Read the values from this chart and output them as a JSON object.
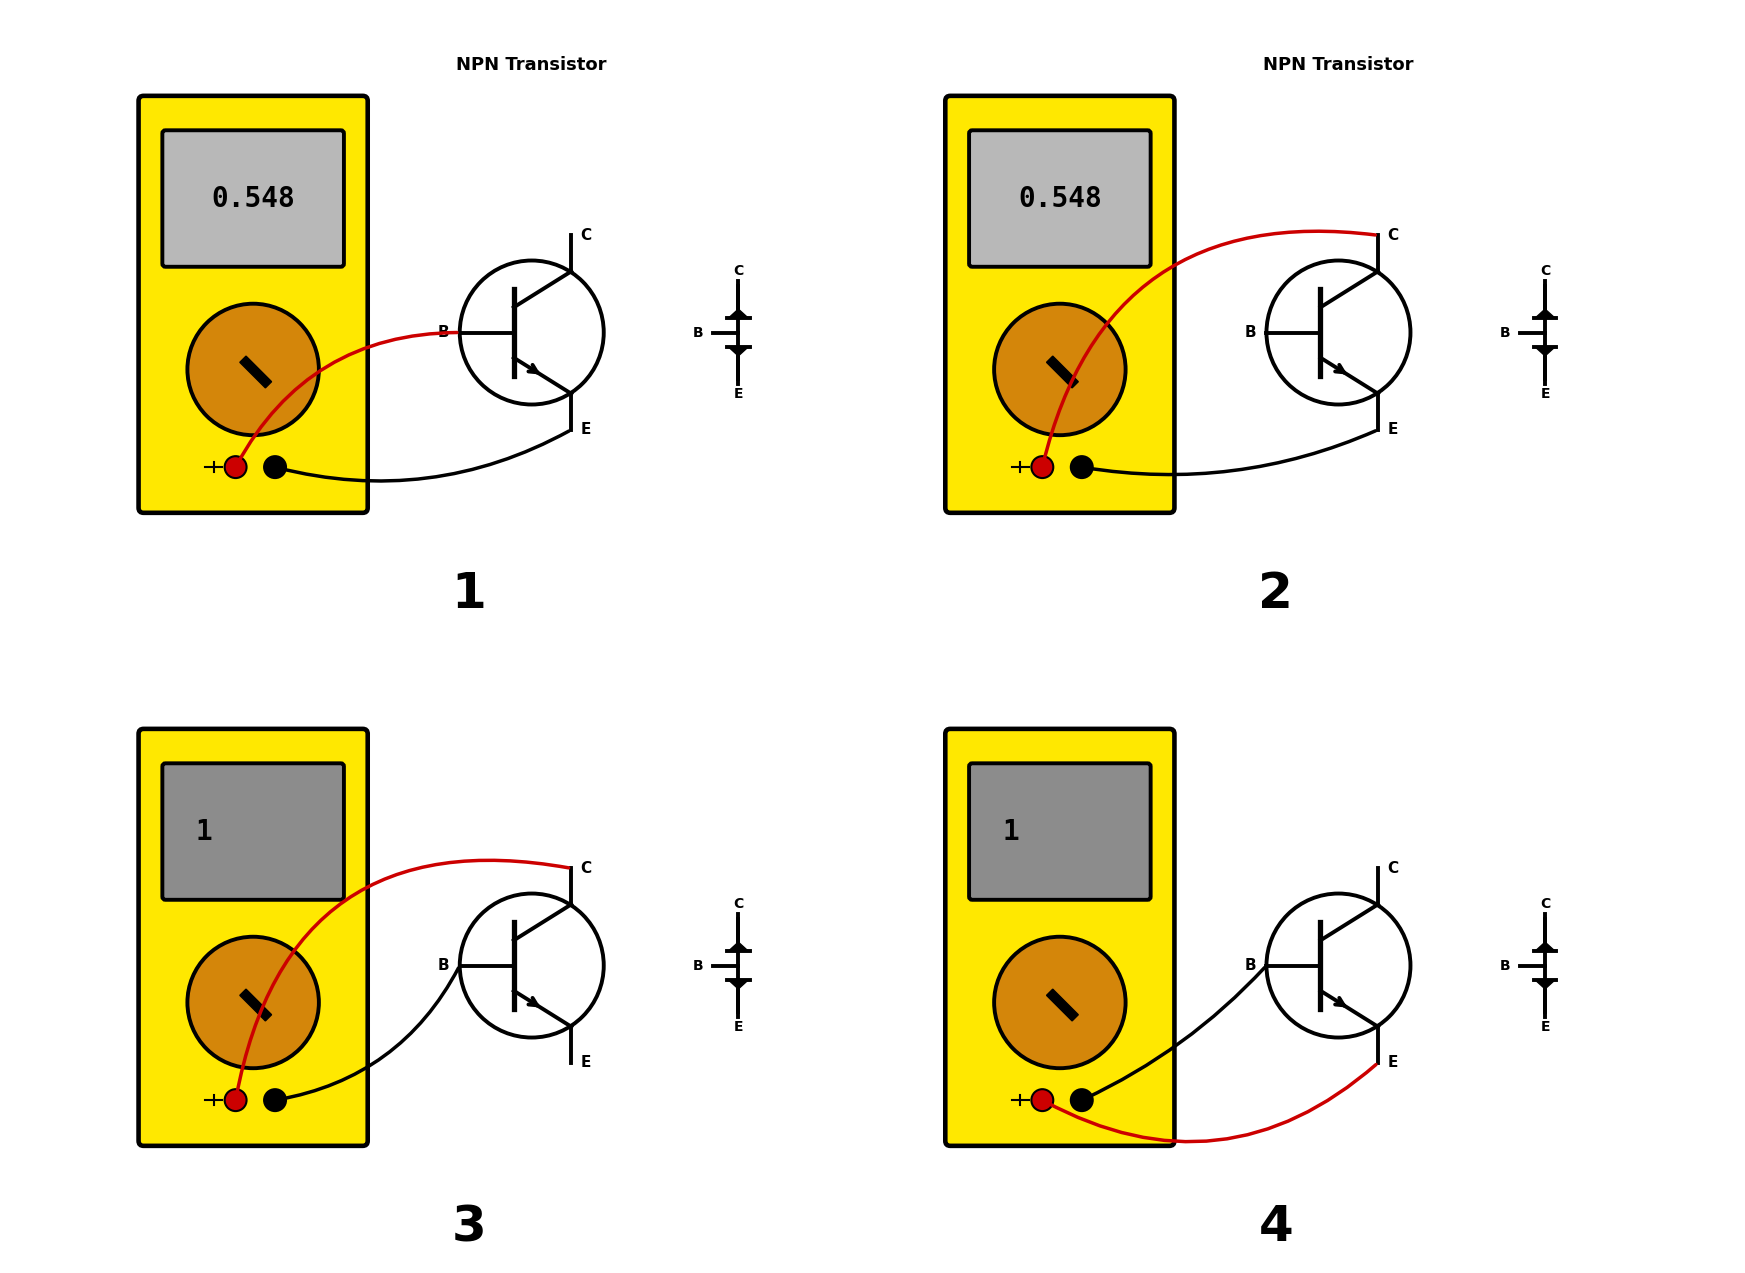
{
  "bg_color": "#ffffff",
  "yellow": "#FFE800",
  "gray_display_active": "#B8B8B8",
  "gray_display_inactive": "#8C8C8C",
  "black": "#000000",
  "red_wire": "#CC0000",
  "red_dot": "#CC0000",
  "orange_knob": "#D4860A",
  "display_text_active": "0.548",
  "display_text_inactive": "1",
  "npn_label": "NPN Transistor",
  "panel_labels": [
    "1",
    "2",
    "3",
    "4"
  ]
}
